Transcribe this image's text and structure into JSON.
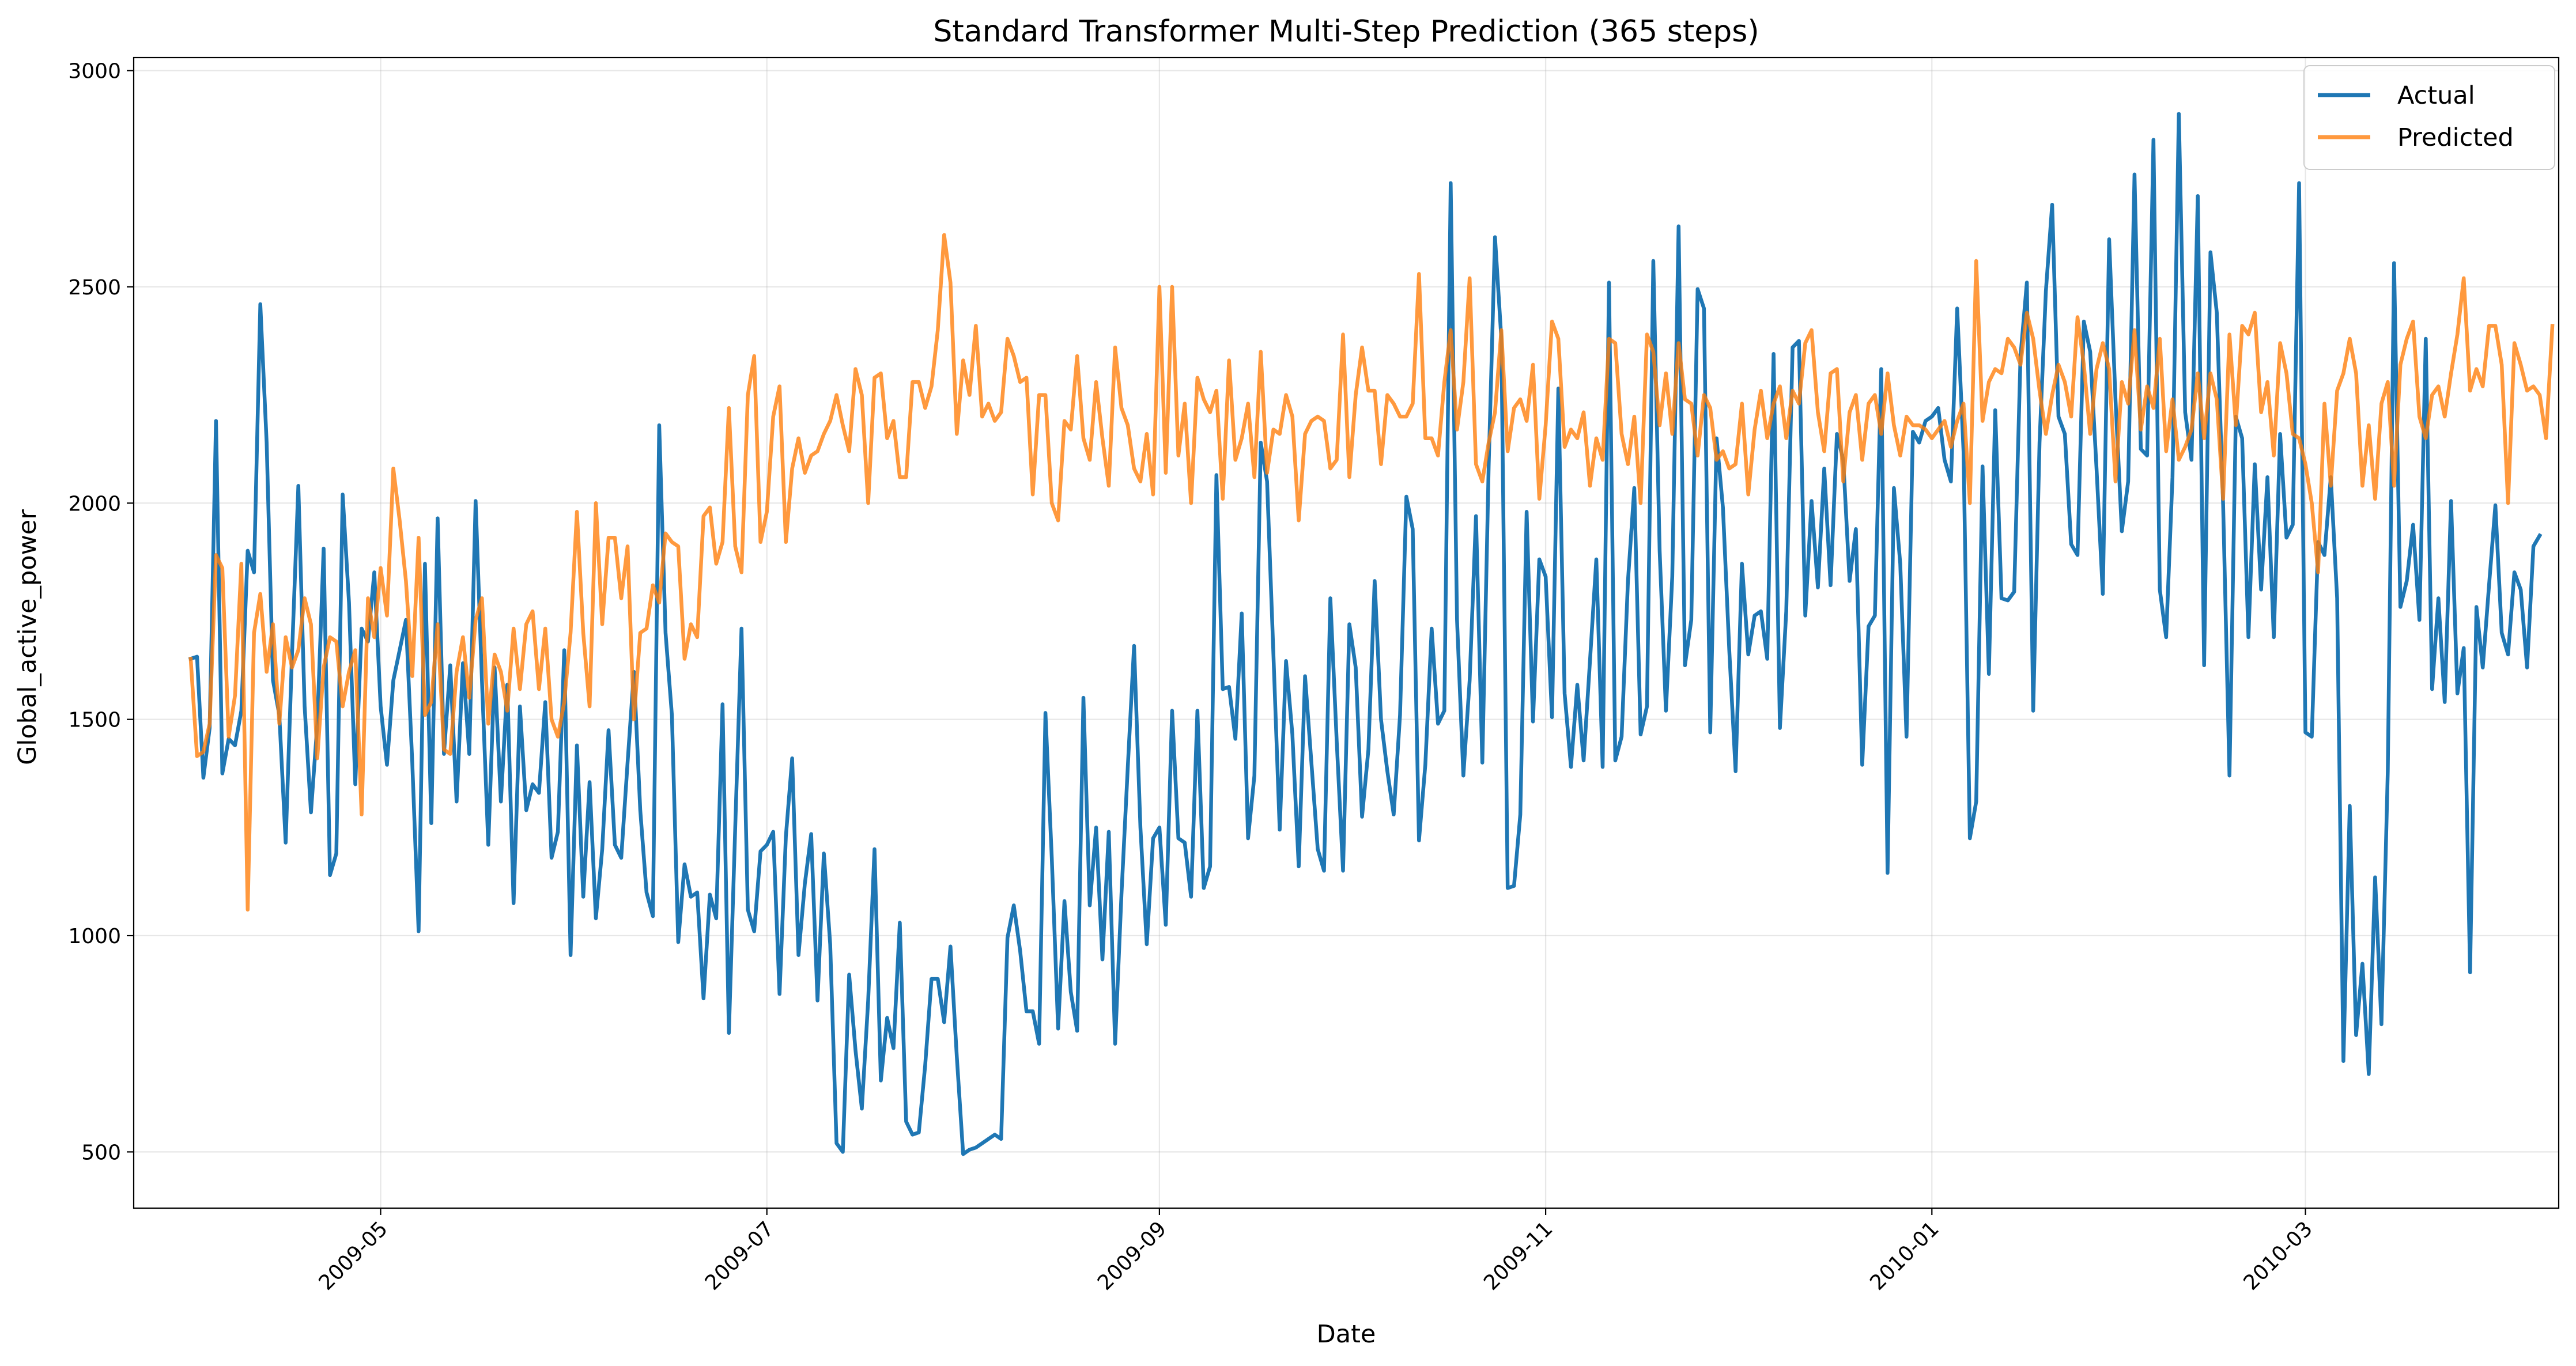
{
  "chart_data": {
    "type": "line",
    "title": "Standard Transformer Multi-Step Prediction (365 steps)",
    "xlabel": "Date",
    "ylabel": "Global_active_power",
    "x_range": [
      "2009-03-23",
      "2010-04-10"
    ],
    "x_start": "2009-04-01",
    "x_step": "1 day",
    "ylim": [
      370,
      3030
    ],
    "grid": true,
    "legend_position": "top-right",
    "x_ticks": [
      "2009-05",
      "2009-07",
      "2009-09",
      "2009-11",
      "2010-01",
      "2010-03"
    ],
    "y_ticks": [
      500,
      1000,
      1500,
      2000,
      2500,
      3000
    ],
    "series": [
      {
        "name": "Actual",
        "color": "#1f77b4",
        "values": [
          1640,
          1645,
          1365,
          1480,
          2190,
          1375,
          1455,
          1440,
          1520,
          1890,
          1840,
          2460,
          2140,
          1590,
          1510,
          1215,
          1650,
          2040,
          1530,
          1285,
          1490,
          1895,
          1140,
          1190,
          2020,
          1770,
          1350,
          1710,
          1680,
          1840,
          1530,
          1395,
          1590,
          1660,
          1730,
          1400,
          1010,
          1860,
          1260,
          1965,
          1420,
          1625,
          1310,
          1630,
          1420,
          2005,
          1590,
          1210,
          1620,
          1310,
          1580,
          1075,
          1530,
          1290,
          1350,
          1330,
          1540,
          1180,
          1240,
          1660,
          955,
          1440,
          1090,
          1355,
          1040,
          1200,
          1475,
          1210,
          1180,
          1400,
          1610,
          1290,
          1100,
          1045,
          2180,
          1700,
          1510,
          985,
          1165,
          1090,
          1100,
          855,
          1095,
          1040,
          1535,
          775,
          1250,
          1710,
          1060,
          1010,
          1195,
          1210,
          1240,
          865,
          1230,
          1410,
          955,
          1120,
          1235,
          850,
          1190,
          980,
          520,
          500,
          910,
          735,
          600,
          850,
          1200,
          665,
          810,
          740,
          1030,
          570,
          540,
          545,
          700,
          900,
          900,
          800,
          975,
          720,
          495,
          505,
          510,
          520,
          530,
          540,
          530,
          995,
          1070,
          965,
          825,
          825,
          750,
          1515,
          1180,
          785,
          1080,
          870,
          780,
          1550,
          1070,
          1250,
          945,
          1240,
          750,
          1095,
          1390,
          1670,
          1250,
          980,
          1225,
          1250,
          1025,
          1520,
          1225,
          1215,
          1090,
          1520,
          1110,
          1160,
          2065,
          1570,
          1575,
          1455,
          1745,
          1225,
          1370,
          2140,
          2050,
          1650,
          1245,
          1635,
          1465,
          1160,
          1600,
          1400,
          1200,
          1150,
          1780,
          1450,
          1150,
          1720,
          1620,
          1275,
          1430,
          1820,
          1500,
          1380,
          1280,
          1510,
          2015,
          1940,
          1220,
          1395,
          1710,
          1490,
          1520,
          2740,
          1730,
          1370,
          1590,
          1970,
          1400,
          2085,
          2615,
          2380,
          1110,
          1115,
          1280,
          1980,
          1495,
          1870,
          1830,
          1505,
          2265,
          1560,
          1390,
          1580,
          1405,
          1635,
          1870,
          1390,
          2510,
          1405,
          1460,
          1820,
          2035,
          1465,
          1530,
          2560,
          1890,
          1520,
          1830,
          2640,
          1625,
          1730,
          2495,
          2450,
          1470,
          2150,
          1990,
          1660,
          1380,
          1860,
          1650,
          1740,
          1750,
          1640,
          2345,
          1480,
          1750,
          2360,
          2375,
          1740,
          2005,
          1805,
          2080,
          1810,
          2160,
          2100,
          1820,
          1940,
          1395,
          1715,
          1740,
          2310,
          1145,
          2035,
          1860,
          1460,
          2165,
          2140,
          2190,
          2200,
          2220,
          2100,
          2050,
          2450,
          2120,
          1225,
          1310,
          2085,
          1605,
          2215,
          1780,
          1775,
          1795,
          2340,
          2510,
          1520,
          2140,
          2490,
          2690,
          2200,
          2160,
          1905,
          1880,
          2420,
          2350,
          2080,
          1790,
          2610,
          2240,
          1935,
          2050,
          2760,
          2125,
          2110,
          2840,
          1800,
          1690,
          2060,
          2900,
          2210,
          2100,
          2710,
          1625,
          2580,
          2440,
          1995,
          1370,
          2200,
          2150,
          1690,
          2090,
          1800,
          2060,
          1690,
          2160,
          1920,
          1950,
          2740,
          1470,
          1460,
          1910,
          1880,
          2060,
          1780,
          710,
          1300,
          770,
          935,
          680,
          1135,
          795,
          1380,
          2555,
          1760,
          1820,
          1950,
          1730,
          2380,
          1570,
          1780,
          1540,
          2005,
          1560,
          1665,
          915,
          1760,
          1620,
          1810,
          1995,
          1700,
          1650,
          1840,
          1800,
          1620,
          1900,
          1925
        ]
      },
      {
        "name": "Predicted",
        "color": "#ff7f0e",
        "values": [
          1640,
          1415,
          1425,
          1490,
          1880,
          1850,
          1460,
          1555,
          1860,
          1060,
          1700,
          1790,
          1610,
          1720,
          1490,
          1690,
          1620,
          1660,
          1780,
          1720,
          1410,
          1620,
          1690,
          1680,
          1530,
          1610,
          1660,
          1280,
          1780,
          1690,
          1850,
          1740,
          2080,
          1960,
          1820,
          1600,
          1920,
          1510,
          1540,
          1720,
          1430,
          1420,
          1610,
          1690,
          1550,
          1730,
          1780,
          1490,
          1650,
          1610,
          1520,
          1710,
          1570,
          1720,
          1750,
          1570,
          1710,
          1500,
          1460,
          1540,
          1700,
          1980,
          1700,
          1530,
          2000,
          1720,
          1920,
          1920,
          1780,
          1900,
          1500,
          1700,
          1710,
          1810,
          1770,
          1930,
          1910,
          1900,
          1640,
          1720,
          1690,
          1970,
          1990,
          1860,
          1910,
          2220,
          1900,
          1840,
          2250,
          2340,
          1910,
          1980,
          2200,
          2270,
          1910,
          2080,
          2150,
          2070,
          2110,
          2120,
          2160,
          2190,
          2250,
          2180,
          2120,
          2310,
          2250,
          2000,
          2290,
          2300,
          2150,
          2190,
          2060,
          2060,
          2280,
          2280,
          2220,
          2270,
          2400,
          2620,
          2510,
          2160,
          2330,
          2250,
          2410,
          2200,
          2230,
          2190,
          2210,
          2380,
          2340,
          2280,
          2290,
          2020,
          2250,
          2250,
          2000,
          1960,
          2190,
          2170,
          2340,
          2150,
          2100,
          2280,
          2150,
          2040,
          2360,
          2220,
          2180,
          2080,
          2050,
          2160,
          2020,
          2500,
          2070,
          2500,
          2110,
          2230,
          2000,
          2290,
          2240,
          2210,
          2260,
          2010,
          2330,
          2100,
          2150,
          2230,
          2060,
          2350,
          2070,
          2170,
          2160,
          2250,
          2200,
          1960,
          2160,
          2190,
          2200,
          2190,
          2080,
          2100,
          2390,
          2060,
          2250,
          2360,
          2260,
          2260,
          2090,
          2250,
          2230,
          2200,
          2200,
          2230,
          2530,
          2150,
          2150,
          2110,
          2280,
          2400,
          2170,
          2280,
          2520,
          2090,
          2050,
          2140,
          2210,
          2400,
          2120,
          2220,
          2240,
          2190,
          2320,
          2010,
          2180,
          2420,
          2380,
          2130,
          2170,
          2150,
          2210,
          2040,
          2150,
          2100,
          2380,
          2370,
          2160,
          2090,
          2200,
          2000,
          2390,
          2350,
          2180,
          2300,
          2160,
          2370,
          2240,
          2230,
          2110,
          2250,
          2220,
          2100,
          2120,
          2080,
          2090,
          2230,
          2020,
          2170,
          2260,
          2150,
          2230,
          2270,
          2150,
          2260,
          2230,
          2370,
          2400,
          2210,
          2120,
          2300,
          2310,
          2050,
          2210,
          2250,
          2100,
          2230,
          2250,
          2160,
          2300,
          2180,
          2110,
          2200,
          2180,
          2180,
          2170,
          2150,
          2170,
          2190,
          2130,
          2190,
          2230,
          2000,
          2560,
          2190,
          2280,
          2310,
          2300,
          2380,
          2360,
          2320,
          2440,
          2380,
          2260,
          2160,
          2250,
          2320,
          2280,
          2200,
          2430,
          2320,
          2160,
          2310,
          2370,
          2310,
          2050,
          2280,
          2230,
          2400,
          2170,
          2270,
          2220,
          2380,
          2120,
          2240,
          2100,
          2130,
          2170,
          2300,
          2150,
          2300,
          2240,
          2010,
          2390,
          2180,
          2410,
          2390,
          2440,
          2210,
          2280,
          2110,
          2370,
          2300,
          2160,
          2150,
          2090,
          2000,
          1840,
          2230,
          2040,
          2260,
          2300,
          2380,
          2300,
          2040,
          2180,
          2010,
          2230,
          2280,
          2040,
          2320,
          2380,
          2420,
          2200,
          2150,
          2250,
          2270,
          2200,
          2300,
          2390,
          2520,
          2260,
          2310,
          2270,
          2410,
          2410,
          2320,
          2000,
          2370,
          2320,
          2260,
          2270,
          2250,
          2150,
          2410
        ]
      }
    ]
  }
}
